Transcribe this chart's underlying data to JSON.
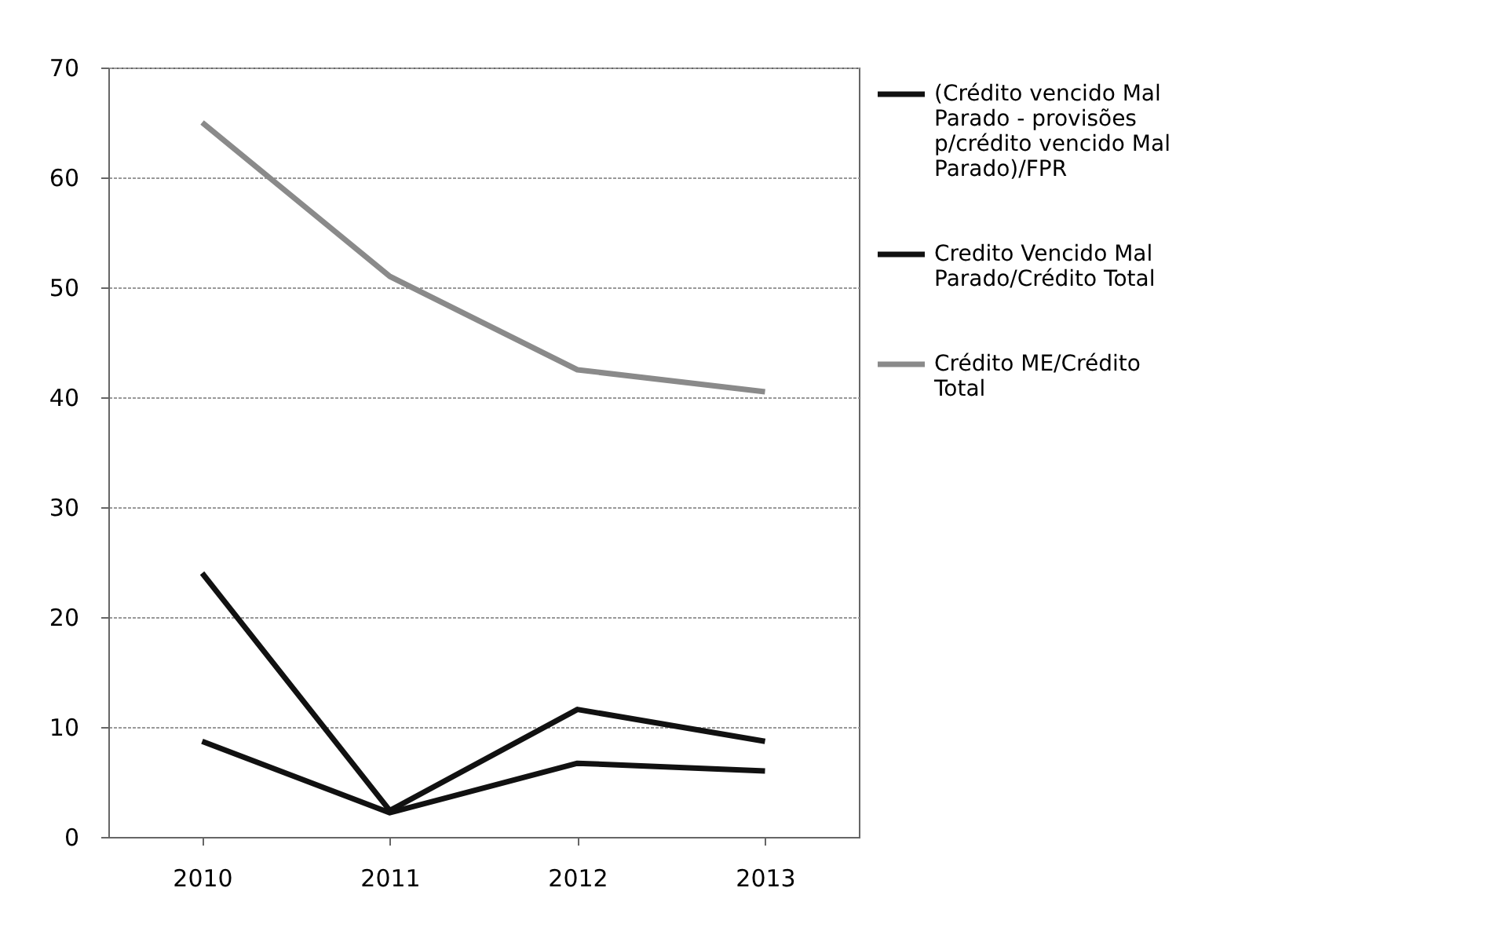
{
  "chart_data": {
    "type": "line",
    "categories": [
      "2010",
      "2011",
      "2012",
      "2013"
    ],
    "series": [
      {
        "name": "(Crédito vencido Mal Parado - provisões p/crédito vencido Mal Parado)/FPR",
        "color": "#111111",
        "values": [
          24,
          2.4,
          11.6,
          8.7
        ]
      },
      {
        "name": "Credito Vencido Mal Parado/Crédito Total",
        "color": "#111111",
        "values": [
          8.7,
          2.2,
          6.7,
          6.0
        ]
      },
      {
        "name": "Crédito ME/Crédito Total",
        "color": "#8a8a8a",
        "values": [
          65,
          51,
          42.5,
          40.5
        ]
      }
    ],
    "ylim": [
      0,
      70
    ],
    "yticks": [
      0,
      10,
      20,
      30,
      40,
      50,
      60,
      70
    ],
    "grid": "y",
    "legend": "right",
    "marker": "none",
    "line_style": "solid"
  }
}
